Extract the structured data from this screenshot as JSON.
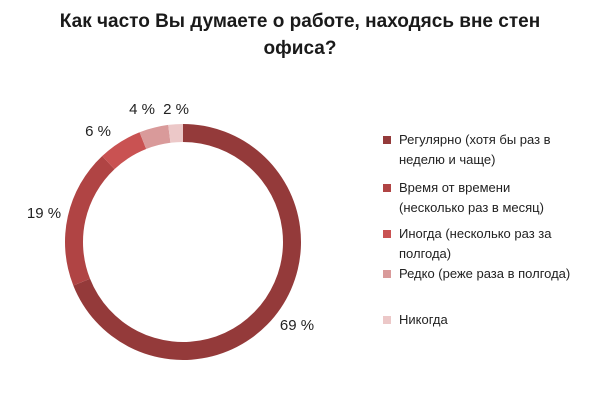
{
  "chart_data": {
    "type": "pie",
    "title": "Как часто Вы думаете о работе, находясь вне стен офиса?",
    "categories": [
      "Регулярно (хотя бы раз в неделю и чаще)",
      "Время от времени (несколько раз в месяц)",
      "Иногда (несколько раз за полгода)",
      "Редко (реже раза в полгода)",
      "Никогда"
    ],
    "values": [
      69,
      19,
      6,
      4,
      2
    ],
    "data_labels": [
      "69 %",
      "19 %",
      "6 %",
      "4 %",
      "2 %"
    ],
    "colors": [
      "#943a3a",
      "#b04444",
      "#c95252",
      "#d99a9a",
      "#ecc8c8"
    ],
    "style": "donut",
    "legend_position": "right"
  },
  "legend": {
    "items": [
      {
        "line1": "Регулярно (хотя бы раз в",
        "line2": "неделю и чаще)"
      },
      {
        "line1": "Время от времени",
        "line2": "(несколько раз в месяц)"
      },
      {
        "line1": "Иногда (несколько раз за",
        "line2": "полгода)"
      },
      {
        "line1": "Редко (реже раза в полгода)",
        "line2": ""
      },
      {
        "line1": "Никогда",
        "line2": ""
      }
    ]
  }
}
